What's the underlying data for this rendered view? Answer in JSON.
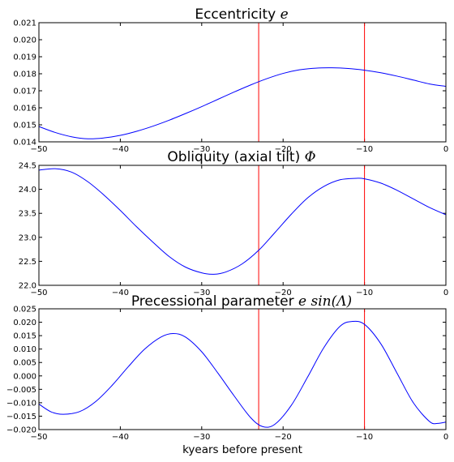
{
  "chart_data": [
    {
      "type": "line",
      "title": "Eccentricity",
      "title_math": "e",
      "xlim": [
        -50,
        0
      ],
      "ylim": [
        0.014,
        0.021
      ],
      "xticks": [
        -50,
        -40,
        -30,
        -20,
        -10,
        0
      ],
      "xtick_labels": [
        "−50",
        "−40",
        "−30",
        "−20",
        "−10",
        "0"
      ],
      "yticks": [
        0.014,
        0.015,
        0.016,
        0.017,
        0.018,
        0.019,
        0.02,
        0.021
      ],
      "ytick_labels": [
        "0.014",
        "0.015",
        "0.016",
        "0.017",
        "0.018",
        "0.019",
        "0.020",
        "0.021"
      ],
      "vlines": [
        -23,
        -10
      ],
      "series": [
        {
          "color": "#0000ff",
          "x": [
            -50,
            -48,
            -46,
            -44,
            -42,
            -40,
            -38,
            -36,
            -34,
            -32,
            -30,
            -28,
            -26,
            -24,
            -22,
            -20,
            -18,
            -16,
            -14,
            -12,
            -10,
            -8,
            -6,
            -4,
            -2,
            0
          ],
          "y": [
            0.0149,
            0.01455,
            0.0143,
            0.01418,
            0.01423,
            0.01438,
            0.01462,
            0.01492,
            0.01527,
            0.01566,
            0.01607,
            0.0165,
            0.01693,
            0.01734,
            0.01771,
            0.01802,
            0.01823,
            0.01833,
            0.01835,
            0.01831,
            0.01821,
            0.01806,
            0.01786,
            0.01763,
            0.0174,
            0.01726
          ]
        }
      ],
      "line_color_markers": "#ff0000",
      "grid": false
    },
    {
      "type": "line",
      "title": "Obliquity (axial tilt)",
      "title_math": "Φ",
      "xlim": [
        -50,
        0
      ],
      "ylim": [
        22.0,
        24.5
      ],
      "xticks": [
        -50,
        -40,
        -30,
        -20,
        -10,
        0
      ],
      "xtick_labels": [
        "−50",
        "−40",
        "−30",
        "−20",
        "−10",
        "0"
      ],
      "yticks": [
        22.0,
        22.5,
        23.0,
        23.5,
        24.0,
        24.5
      ],
      "ytick_labels": [
        "22.0",
        "22.5",
        "23.0",
        "23.5",
        "24.0",
        "24.5"
      ],
      "vlines": [
        -23,
        -10
      ],
      "series": [
        {
          "color": "#0000ff",
          "x": [
            -50,
            -48,
            -46,
            -44,
            -42,
            -40,
            -38,
            -36,
            -34,
            -32,
            -30,
            -28.5,
            -27,
            -25,
            -23,
            -21,
            -19,
            -17,
            -15,
            -13,
            -11,
            -10,
            -8,
            -6,
            -4,
            -2,
            0
          ],
          "y": [
            24.4,
            24.43,
            24.36,
            24.16,
            23.88,
            23.56,
            23.22,
            22.9,
            22.6,
            22.38,
            22.26,
            22.23,
            22.28,
            22.45,
            22.73,
            23.1,
            23.48,
            23.82,
            24.06,
            24.2,
            24.23,
            24.22,
            24.13,
            23.98,
            23.8,
            23.62,
            23.47
          ]
        }
      ],
      "line_color_markers": "#ff0000",
      "grid": false
    },
    {
      "type": "line",
      "title": "Precessional parameter",
      "title_math": "e sin(Λ)",
      "xlabel": "kyears before present",
      "xlim": [
        -50,
        0
      ],
      "ylim": [
        -0.02,
        0.025
      ],
      "xticks": [
        -50,
        -40,
        -30,
        -20,
        -10,
        0
      ],
      "xtick_labels": [
        "−50",
        "−40",
        "−30",
        "−20",
        "−10",
        "0"
      ],
      "yticks": [
        -0.02,
        -0.015,
        -0.01,
        -0.005,
        0.0,
        0.005,
        0.01,
        0.015,
        0.02,
        0.025
      ],
      "ytick_labels": [
        "−0.020",
        "−0.015",
        "−0.010",
        "−0.005",
        "0.000",
        "0.005",
        "0.010",
        "0.015",
        "0.020",
        "0.025"
      ],
      "vlines": [
        -23,
        -10
      ],
      "series": [
        {
          "color": "#0000ff",
          "x": [
            -50,
            -48.5,
            -47,
            -45,
            -43,
            -41,
            -39,
            -37,
            -35,
            -33.5,
            -32,
            -30,
            -28,
            -26,
            -24,
            -22.5,
            -21,
            -19,
            -17,
            -15,
            -13,
            -11.5,
            -10,
            -8,
            -6,
            -4,
            -2,
            -1,
            0
          ],
          "y": [
            -0.0105,
            -0.0134,
            -0.0143,
            -0.0133,
            -0.0095,
            -0.0035,
            0.0035,
            0.01,
            0.0145,
            0.0158,
            0.0145,
            0.009,
            0.001,
            -0.0075,
            -0.0155,
            -0.0189,
            -0.018,
            -0.011,
            -0.0005,
            0.0105,
            0.0185,
            0.0203,
            0.0192,
            0.012,
            0.001,
            -0.01,
            -0.017,
            -0.0177,
            -0.0172
          ]
        }
      ],
      "line_color_markers": "#ff0000",
      "grid": false
    }
  ]
}
